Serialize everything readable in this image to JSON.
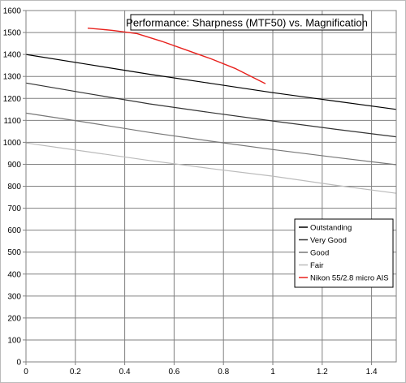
{
  "chart_data": {
    "type": "line",
    "title": "Performance: Sharpness (MTF50) vs. Magnification",
    "xlabel": "",
    "ylabel": "",
    "xlim": [
      0,
      1.5
    ],
    "ylim": [
      0,
      1600
    ],
    "x_ticks": [
      0,
      0.2,
      0.4,
      0.6,
      0.8,
      1,
      1.2,
      1.4
    ],
    "y_ticks": [
      0,
      100,
      200,
      300,
      400,
      500,
      600,
      700,
      800,
      900,
      1000,
      1100,
      1200,
      1300,
      1400,
      1500,
      1600
    ],
    "x_tick_labels": [
      "0",
      "0.2",
      "0.4",
      "0.6",
      "0.8",
      "1",
      "1.2",
      "1.4"
    ],
    "y_tick_labels": [
      "0",
      "100",
      "200",
      "300",
      "400",
      "500",
      "600",
      "700",
      "800",
      "900",
      "1000",
      "1100",
      "1200",
      "1300",
      "1400",
      "1500",
      "1600"
    ],
    "grid": true,
    "legend_position": "lower-right",
    "series": [
      {
        "name": "Outstanding",
        "color": "#000000",
        "x": [
          0,
          0.25,
          0.5,
          0.75,
          1.0,
          1.25,
          1.5
        ],
        "y": [
          1400,
          1355,
          1310,
          1268,
          1226,
          1188,
          1150
        ]
      },
      {
        "name": "Very Good",
        "color": "#333333",
        "x": [
          0,
          0.25,
          0.5,
          0.75,
          1.0,
          1.25,
          1.5
        ],
        "y": [
          1270,
          1222,
          1175,
          1135,
          1097,
          1060,
          1025
        ]
      },
      {
        "name": "Good",
        "color": "#777777",
        "x": [
          0,
          0.25,
          0.5,
          0.75,
          1.0,
          1.25,
          1.5
        ],
        "y": [
          1133,
          1090,
          1045,
          1005,
          967,
          932,
          898
        ]
      },
      {
        "name": "Fair",
        "color": "#bbbbbb",
        "x": [
          0,
          0.25,
          0.5,
          0.75,
          1.0,
          1.25,
          1.5
        ],
        "y": [
          997,
          957,
          917,
          880,
          846,
          805,
          768
        ]
      },
      {
        "name": "Nikon 55/2.8 micro AIS",
        "color": "#e8201c",
        "x": [
          0.25,
          0.35,
          0.45,
          0.55,
          0.65,
          0.75,
          0.85,
          0.97
        ],
        "y": [
          1520,
          1510,
          1495,
          1460,
          1420,
          1380,
          1335,
          1267
        ]
      }
    ]
  }
}
